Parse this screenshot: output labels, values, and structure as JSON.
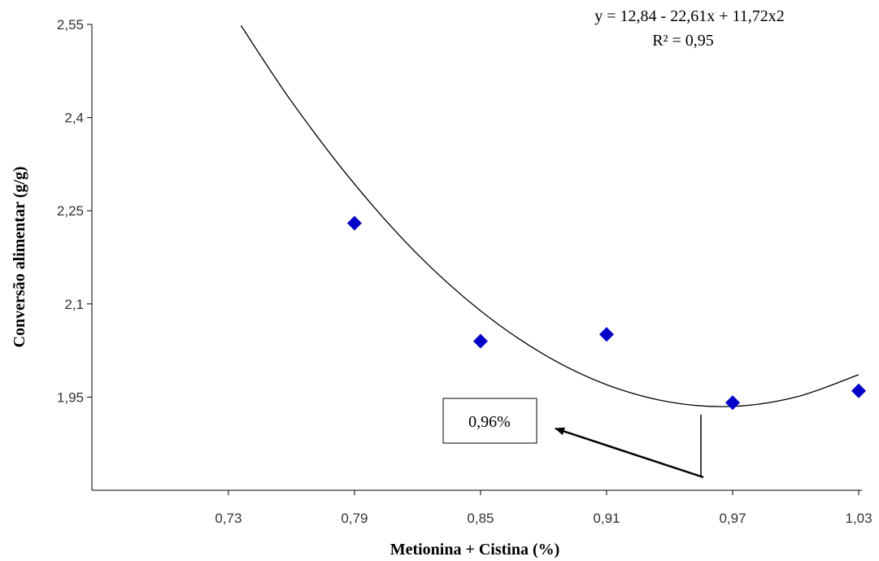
{
  "chart_data": {
    "type": "scatter",
    "x_label": "Metionina + Cistina (%)",
    "y_label": "Conversão alimentar (g/g)",
    "x": [
      0.79,
      0.85,
      0.91,
      0.97,
      1.03
    ],
    "values": [
      2.23,
      2.04,
      2.051,
      1.941,
      1.96
    ],
    "color": "#0000c8",
    "trend": {
      "x": [
        0.736,
        0.76,
        0.79,
        0.82,
        0.85,
        0.88,
        0.91,
        0.94,
        0.97,
        1.0,
        1.03
      ],
      "values": [
        2.548,
        2.426,
        2.293,
        2.18,
        2.089,
        2.019,
        1.97,
        1.942,
        1.935,
        1.95,
        1.986
      ],
      "color": "#000000"
    },
    "xlim": [
      0.665,
      1.03
    ],
    "ylim": [
      1.8,
      2.55
    ],
    "xticks": [
      {
        "value": 0.73,
        "label": "0,73"
      },
      {
        "value": 0.79,
        "label": "0,79"
      },
      {
        "value": 0.85,
        "label": "0,85"
      },
      {
        "value": 0.91,
        "label": "0,91"
      },
      {
        "value": 0.97,
        "label": "0,97"
      },
      {
        "value": 1.03,
        "label": "1,03"
      }
    ],
    "yticks": [
      {
        "value": 1.95,
        "label": "1,95"
      },
      {
        "value": 2.1,
        "label": "2,1"
      },
      {
        "value": 2.25,
        "label": "2,25"
      },
      {
        "value": 2.4,
        "label": "2,4"
      },
      {
        "value": 2.55,
        "label": "2,55"
      }
    ],
    "annotations": [
      "y = 12,84 - 22,61x + 11,72x2",
      "R² = 0,95",
      "0,96%"
    ]
  }
}
